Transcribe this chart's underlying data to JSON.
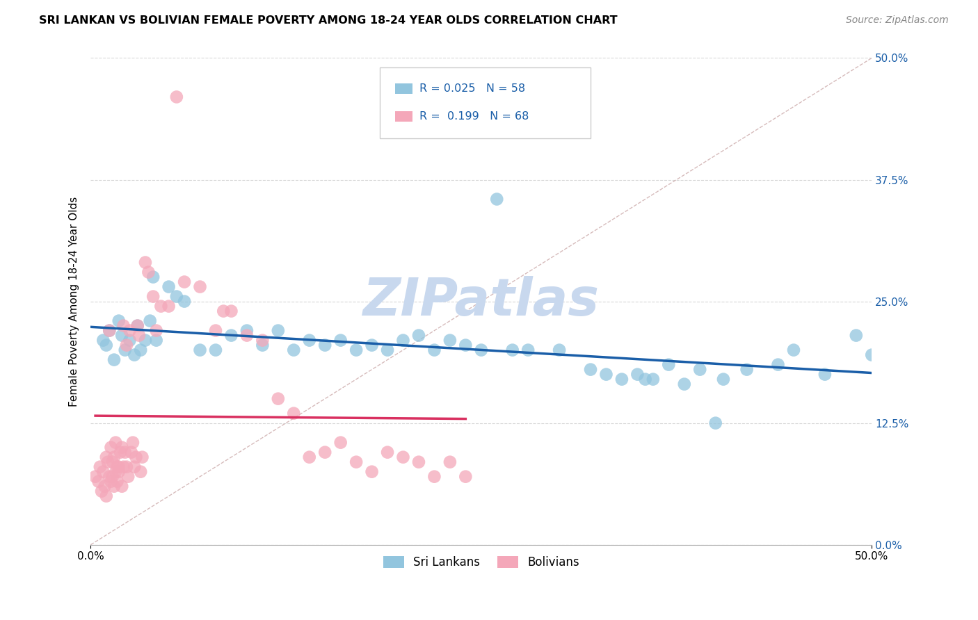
{
  "title": "SRI LANKAN VS BOLIVIAN FEMALE POVERTY AMONG 18-24 YEAR OLDS CORRELATION CHART",
  "source_text": "Source: ZipAtlas.com",
  "ylabel": "Female Poverty Among 18-24 Year Olds",
  "ytick_labels": [
    "0.0%",
    "12.5%",
    "25.0%",
    "37.5%",
    "50.0%"
  ],
  "ytick_values": [
    0.0,
    12.5,
    25.0,
    37.5,
    50.0
  ],
  "xtick_labels": [
    "0.0%",
    "50.0%"
  ],
  "xtick_values": [
    0.0,
    50.0
  ],
  "xlim": [
    0.0,
    50.0
  ],
  "ylim": [
    0.0,
    50.0
  ],
  "sri_lankans_R": "0.025",
  "sri_lankans_N": "58",
  "bolivians_R": "0.199",
  "bolivians_N": "68",
  "sri_lankan_color": "#92C5DE",
  "bolivian_color": "#F4A7B9",
  "sri_lankan_line_color": "#1A5EA8",
  "bolivian_line_color": "#D93060",
  "diagonal_line_color": "#CCAAAA",
  "legend_text_color": "#1A5EA8",
  "background_color": "#FFFFFF",
  "watermark_text": "ZIPatlas",
  "watermark_color": "#C8D8EE",
  "grid_color": "#CCCCCC",
  "sri_lankans_x": [
    0.8,
    1.0,
    1.2,
    1.5,
    1.8,
    2.0,
    2.2,
    2.5,
    2.8,
    3.0,
    3.2,
    3.5,
    3.8,
    4.0,
    4.2,
    5.0,
    5.5,
    6.0,
    7.0,
    8.0,
    9.0,
    10.0,
    11.0,
    12.0,
    13.0,
    14.0,
    15.0,
    16.0,
    17.0,
    18.0,
    19.0,
    20.0,
    21.0,
    22.0,
    23.0,
    24.0,
    25.0,
    26.0,
    27.0,
    28.0,
    30.0,
    32.0,
    33.0,
    34.0,
    35.0,
    36.0,
    37.0,
    38.0,
    39.0,
    40.0,
    35.5,
    40.5,
    42.0,
    44.0,
    45.0,
    47.0,
    49.0,
    50.0
  ],
  "sri_lankans_y": [
    21.0,
    20.5,
    22.0,
    19.0,
    23.0,
    21.5,
    20.0,
    21.0,
    19.5,
    22.5,
    20.0,
    21.0,
    23.0,
    27.5,
    21.0,
    26.5,
    25.5,
    25.0,
    20.0,
    20.0,
    21.5,
    22.0,
    20.5,
    22.0,
    20.0,
    21.0,
    20.5,
    21.0,
    20.0,
    20.5,
    20.0,
    21.0,
    21.5,
    20.0,
    21.0,
    20.5,
    20.0,
    35.5,
    20.0,
    20.0,
    20.0,
    18.0,
    17.5,
    17.0,
    17.5,
    17.0,
    18.5,
    16.5,
    18.0,
    12.5,
    17.0,
    17.0,
    18.0,
    18.5,
    20.0,
    17.5,
    21.5,
    19.5
  ],
  "bolivians_x": [
    0.3,
    0.5,
    0.6,
    0.7,
    0.8,
    0.9,
    1.0,
    1.0,
    1.1,
    1.2,
    1.2,
    1.3,
    1.3,
    1.4,
    1.4,
    1.5,
    1.5,
    1.6,
    1.6,
    1.7,
    1.7,
    1.8,
    1.8,
    1.9,
    2.0,
    2.0,
    2.1,
    2.1,
    2.2,
    2.3,
    2.3,
    2.4,
    2.5,
    2.6,
    2.7,
    2.8,
    2.9,
    3.0,
    3.1,
    3.2,
    3.3,
    3.5,
    3.7,
    4.0,
    4.2,
    4.5,
    5.0,
    5.5,
    6.0,
    7.0,
    8.0,
    8.5,
    9.0,
    10.0,
    11.0,
    12.0,
    13.0,
    14.0,
    15.0,
    16.0,
    17.0,
    18.0,
    19.0,
    20.0,
    21.0,
    22.0,
    23.0,
    24.0
  ],
  "bolivians_y": [
    7.0,
    6.5,
    8.0,
    5.5,
    7.5,
    6.0,
    9.0,
    5.0,
    8.5,
    7.0,
    22.0,
    10.0,
    6.5,
    8.5,
    7.0,
    6.0,
    9.0,
    7.5,
    10.5,
    8.0,
    6.5,
    7.5,
    8.0,
    9.5,
    10.0,
    6.0,
    22.5,
    8.0,
    9.5,
    20.5,
    8.0,
    7.0,
    22.0,
    9.5,
    10.5,
    8.0,
    9.0,
    22.5,
    21.5,
    7.5,
    9.0,
    29.0,
    28.0,
    25.5,
    22.0,
    24.5,
    24.5,
    46.0,
    27.0,
    26.5,
    22.0,
    24.0,
    24.0,
    21.5,
    21.0,
    15.0,
    13.5,
    9.0,
    9.5,
    10.5,
    8.5,
    7.5,
    9.5,
    9.0,
    8.5,
    7.0,
    8.5,
    7.0
  ]
}
